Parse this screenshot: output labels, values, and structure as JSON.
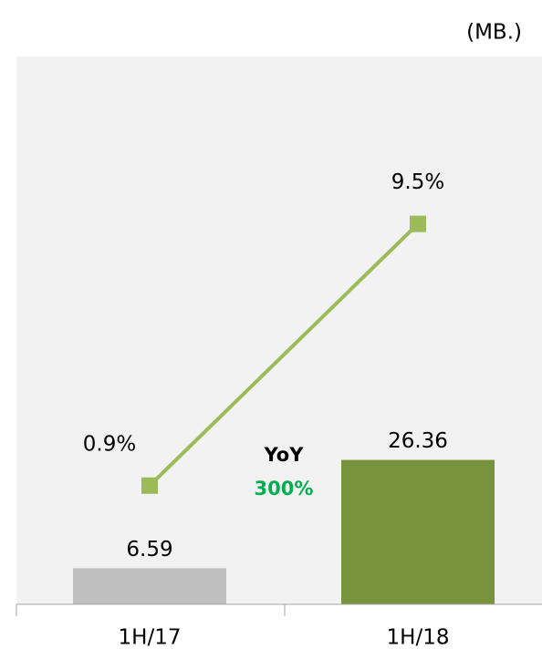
{
  "chart_data": {
    "type": "bar",
    "unit_label": "(MB.)",
    "categories": [
      "1H/17",
      "1H/18"
    ],
    "series": [
      {
        "type": "bar",
        "values": [
          6.59,
          26.36
        ],
        "colors": [
          "#bfbfbf",
          "#77933c"
        ]
      },
      {
        "type": "line",
        "axis": "y2",
        "values": [
          0.9,
          9.5
        ],
        "value_labels": [
          "0.9%",
          "9.5%"
        ],
        "color": "#9bbb59"
      }
    ],
    "ylim": [
      0,
      100
    ],
    "y2lim": [
      -3,
      15
    ],
    "annotations": [
      {
        "text": "YoY",
        "color": "#000000"
      },
      {
        "text": "300%",
        "color": "#00b050"
      }
    ]
  }
}
